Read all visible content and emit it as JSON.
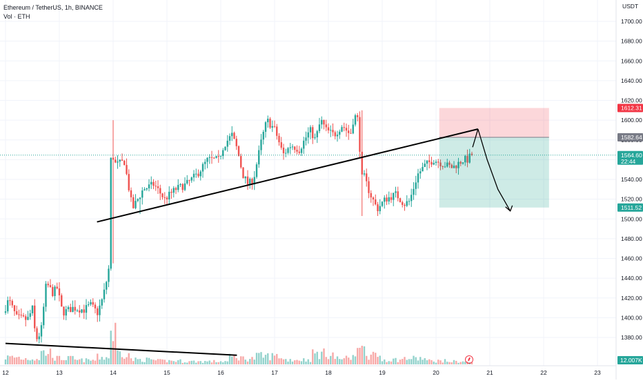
{
  "legend": {
    "symbol": "Ethereum / TetherUS, 1h, BINANCE",
    "volume": "Vol · ETH"
  },
  "currency": "USDT",
  "chart_data": {
    "type": "candlestick",
    "symbol": "Ethereum / TetherUS",
    "interval": "1h",
    "exchange": "BINANCE",
    "y_axis": {
      "unit": "USDT",
      "range": [
        1360,
        1720
      ],
      "ticks": [
        1380,
        1400,
        1420,
        1440,
        1460,
        1480,
        1500,
        1520,
        1540,
        1560,
        1580,
        1600,
        1620,
        1640,
        1660,
        1680,
        1700
      ],
      "tick_labels": [
        "1380.00",
        "1400.00",
        "1420.00",
        "1440.00",
        "1460.00",
        "1480.00",
        "1500.00",
        "1520.00",
        "1540.00",
        "1560.00",
        "1580.00",
        "1600.00",
        "1620.00",
        "1640.00",
        "1660.00",
        "1680.00",
        "1700.00"
      ]
    },
    "x_axis": {
      "range": [
        12,
        23
      ],
      "ticks": [
        12,
        13,
        14,
        15,
        16,
        17,
        18,
        19,
        20,
        21,
        22,
        23
      ],
      "tick_labels": [
        "12",
        "13",
        "14",
        "15",
        "16",
        "17",
        "18",
        "19",
        "20",
        "21",
        "22",
        "23"
      ]
    },
    "price_labels": [
      {
        "text": "1612.31",
        "value": 1612.31,
        "kind": "stop-loss",
        "color": "#f23645"
      },
      {
        "text": "1582.64",
        "value": 1582.64,
        "kind": "entry",
        "color": "#787b86"
      },
      {
        "text": "1564.60",
        "sub": "22:44",
        "value": 1564.6,
        "kind": "last-price",
        "color": "#26a69a"
      },
      {
        "text": "1511.52",
        "value": 1511.52,
        "kind": "take-profit",
        "color": "#26a69a"
      }
    ],
    "volume_label": {
      "text": "12.007K",
      "color": "#26a69a"
    },
    "position": {
      "type": "short",
      "x_start": 20.06,
      "x_end": 22.1,
      "entry": 1582.64,
      "stop": 1612.31,
      "target": 1511.52
    },
    "trendlines": [
      {
        "x1": 13.7,
        "y1": 1497,
        "x2": 20.78,
        "y2": 1591
      },
      {
        "x1": 12.0,
        "y1": 1374,
        "x2": 16.3,
        "y2": 1362
      }
    ],
    "arrow": {
      "points": [
        [
          20.78,
          1591
        ],
        [
          20.95,
          1560
        ],
        [
          21.15,
          1530
        ],
        [
          21.38,
          1508
        ]
      ]
    },
    "anchors": [
      [
        12.0,
        1405
      ],
      [
        12.1,
        1418
      ],
      [
        12.25,
        1400
      ],
      [
        12.45,
        1398
      ],
      [
        12.55,
        1410
      ],
      [
        12.6,
        1377
      ],
      [
        12.7,
        1385
      ],
      [
        12.8,
        1435
      ],
      [
        12.92,
        1425
      ],
      [
        13.0,
        1430
      ],
      [
        13.1,
        1405
      ],
      [
        13.3,
        1410
      ],
      [
        13.5,
        1408
      ],
      [
        13.62,
        1413
      ],
      [
        13.75,
        1405
      ],
      [
        13.85,
        1420
      ],
      [
        13.95,
        1445
      ],
      [
        13.98,
        1460
      ],
      [
        14.0,
        1560
      ],
      [
        14.1,
        1555
      ],
      [
        14.25,
        1558
      ],
      [
        14.4,
        1510
      ],
      [
        14.6,
        1530
      ],
      [
        14.8,
        1535
      ],
      [
        15.0,
        1520
      ],
      [
        15.2,
        1530
      ],
      [
        15.4,
        1535
      ],
      [
        15.6,
        1545
      ],
      [
        15.8,
        1560
      ],
      [
        16.0,
        1560
      ],
      [
        16.1,
        1575
      ],
      [
        16.25,
        1585
      ],
      [
        16.35,
        1570
      ],
      [
        16.45,
        1545
      ],
      [
        16.55,
        1535
      ],
      [
        16.65,
        1540
      ],
      [
        16.8,
        1580
      ],
      [
        16.9,
        1600
      ],
      [
        17.05,
        1590
      ],
      [
        17.2,
        1565
      ],
      [
        17.35,
        1575
      ],
      [
        17.5,
        1570
      ],
      [
        17.6,
        1580
      ],
      [
        17.7,
        1590
      ],
      [
        17.8,
        1580
      ],
      [
        17.9,
        1600
      ],
      [
        18.0,
        1590
      ],
      [
        18.15,
        1585
      ],
      [
        18.3,
        1595
      ],
      [
        18.45,
        1585
      ],
      [
        18.52,
        1605
      ],
      [
        18.6,
        1600
      ],
      [
        18.64,
        1555
      ],
      [
        18.72,
        1540
      ],
      [
        18.82,
        1525
      ],
      [
        18.95,
        1510
      ],
      [
        19.1,
        1520
      ],
      [
        19.3,
        1525
      ],
      [
        19.45,
        1515
      ],
      [
        19.55,
        1518
      ],
      [
        19.7,
        1545
      ],
      [
        19.85,
        1555
      ],
      [
        20.0,
        1560
      ],
      [
        20.2,
        1555
      ],
      [
        20.35,
        1552
      ],
      [
        20.45,
        1556
      ],
      [
        20.55,
        1560
      ],
      [
        20.65,
        1560
      ],
      [
        20.68,
        1564.6
      ]
    ],
    "volume_profile": [
      [
        12.0,
        0.12
      ],
      [
        12.5,
        0.1
      ],
      [
        12.8,
        0.2
      ],
      [
        13.0,
        0.1
      ],
      [
        13.5,
        0.07
      ],
      [
        13.9,
        0.12
      ],
      [
        14.0,
        0.55
      ],
      [
        14.1,
        0.2
      ],
      [
        14.5,
        0.08
      ],
      [
        15.0,
        0.06
      ],
      [
        15.5,
        0.05
      ],
      [
        16.0,
        0.05
      ],
      [
        16.3,
        0.12
      ],
      [
        16.5,
        0.1
      ],
      [
        16.8,
        0.14
      ],
      [
        17.5,
        0.08
      ],
      [
        17.9,
        0.18
      ],
      [
        18.3,
        0.1
      ],
      [
        18.55,
        0.22
      ],
      [
        18.62,
        0.62
      ],
      [
        18.7,
        0.3
      ],
      [
        18.8,
        0.14
      ],
      [
        19.2,
        0.08
      ],
      [
        19.6,
        0.1
      ],
      [
        20.0,
        0.06
      ],
      [
        20.4,
        0.05
      ],
      [
        20.68,
        0.04
      ]
    ]
  }
}
